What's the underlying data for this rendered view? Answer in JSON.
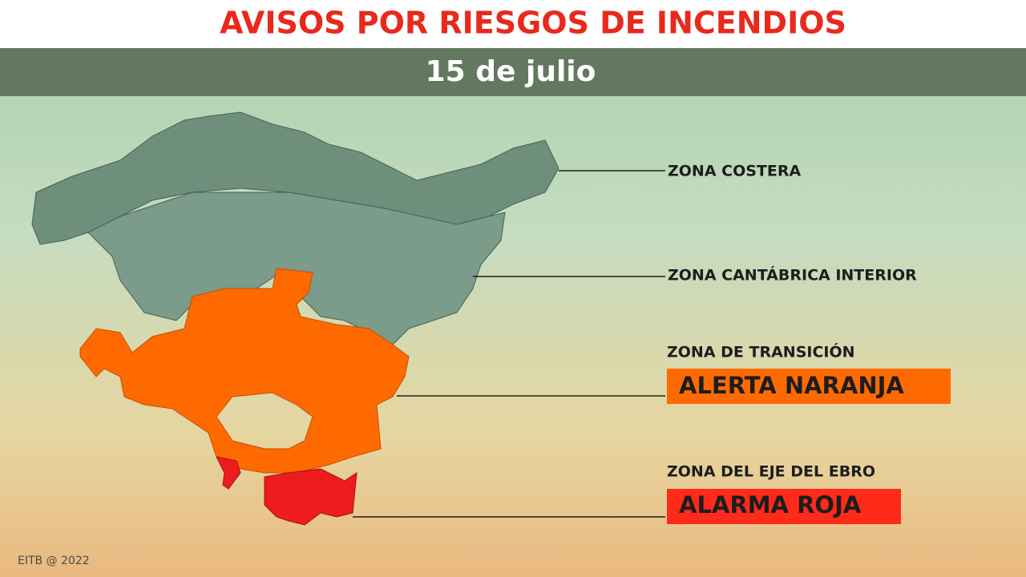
{
  "header": {
    "title": "AVISOS POR RIESGOS DE INCENDIOS",
    "date": "15 de julio"
  },
  "zones": [
    {
      "name": "ZONA COSTERA"
    },
    {
      "name": "ZONA CANTÁBRICA INTERIOR"
    },
    {
      "name": "ZONA DE TRANSICIÓN",
      "alert": "ALERTA NARANJA"
    },
    {
      "name": "ZONA DEL EJE DEL EBRO",
      "alert": "ALARMA ROJA"
    }
  ],
  "footer": "EITB @ 2022"
}
